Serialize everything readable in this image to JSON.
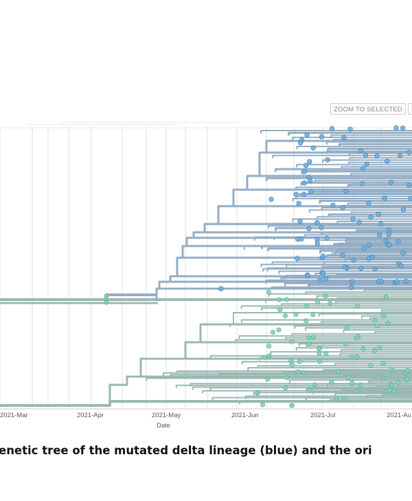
{
  "toolbar": {
    "zoom_label": "ZOOM TO SELECTED"
  },
  "axis": {
    "label": "Date",
    "ticks": [
      "2021-Mar",
      "2021-Apr",
      "2021-May",
      "2021-Jun",
      "2021-Jul",
      "2021-Au"
    ]
  },
  "caption": "enetic tree of the mutated delta lineage (blue) and the ori",
  "colors": {
    "blue_lineage": "#6aaee0",
    "blue_branch": "#93adc4",
    "green_lineage": "#7fd4b7",
    "green_branch": "#9ab8b2",
    "grid": "#e0e0e0"
  }
}
